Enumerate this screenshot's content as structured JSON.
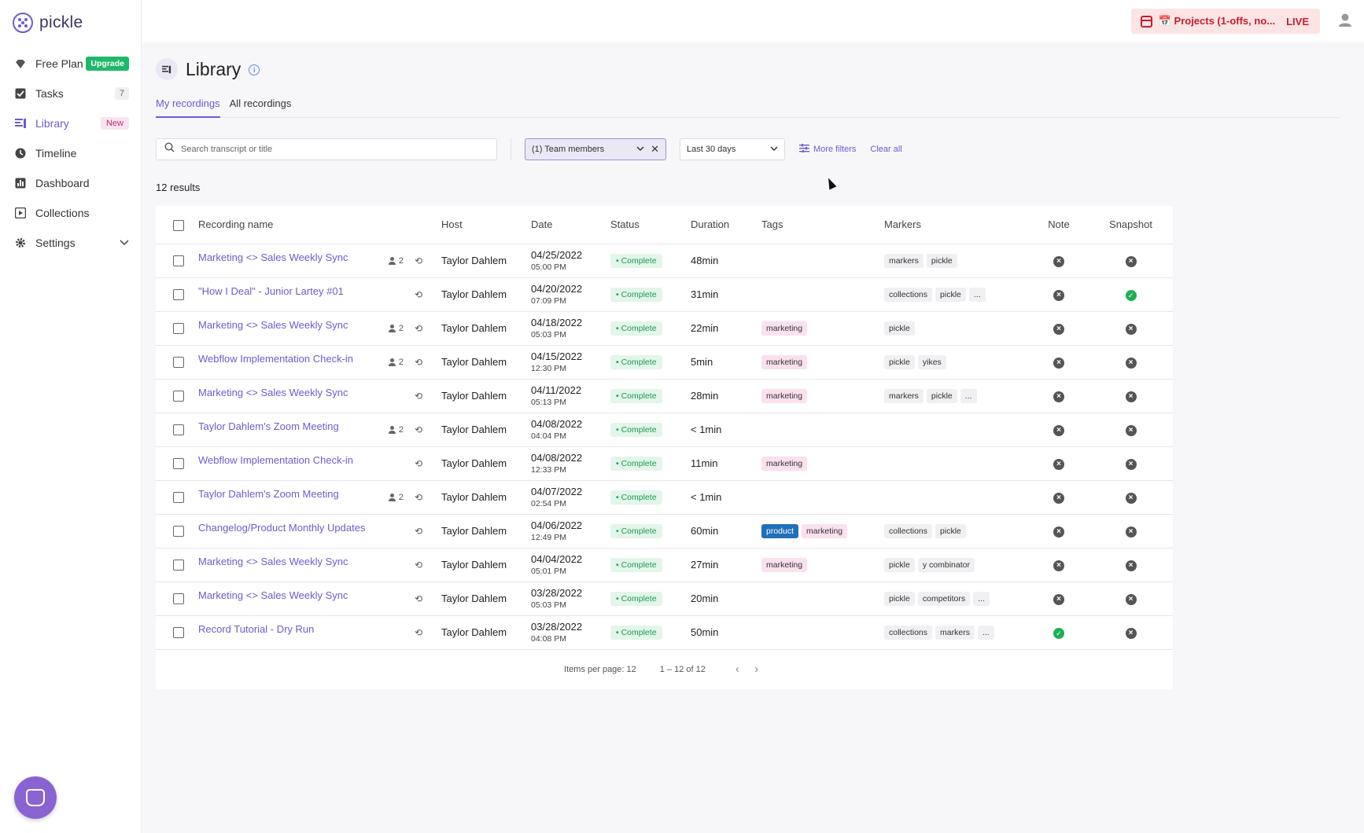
{
  "app": {
    "name": "pickle"
  },
  "sidebar": {
    "plan": {
      "label": "Free Plan",
      "upgrade_label": "Upgrade"
    },
    "items": [
      {
        "label": "Tasks",
        "count": "7"
      },
      {
        "label": "Library",
        "badge": "New"
      },
      {
        "label": "Timeline"
      },
      {
        "label": "Dashboard"
      },
      {
        "label": "Collections"
      },
      {
        "label": "Settings"
      }
    ]
  },
  "topbar": {
    "live_text": "📅 Projects (1-offs, no...",
    "live_badge": "LIVE"
  },
  "page": {
    "title": "Library",
    "tabs": [
      "My recordings",
      "All recordings"
    ]
  },
  "filters": {
    "search_placeholder": "Search transcript or title",
    "team_members": "(1) Team members",
    "date_range": "Last 30 days",
    "more_filters": "More filters",
    "clear_all": "Clear all"
  },
  "results_label": "12 results",
  "table": {
    "headers": [
      "Recording name",
      "Host",
      "Date",
      "Status",
      "Duration",
      "Tags",
      "Markers",
      "Note",
      "Snapshot"
    ],
    "rows": [
      {
        "name": "Marketing <> Sales Weekly Sync",
        "people": "2",
        "host": "Taylor Dahlem",
        "date": "04/25/2022",
        "time": "05:00 PM",
        "status": "Complete",
        "duration": "48min",
        "tags": [],
        "markers": [
          "markers",
          "pickle"
        ],
        "note": false,
        "snapshot": false
      },
      {
        "name": "\"How I Deal\" - Junior Lartey #01",
        "people": "",
        "host": "Taylor Dahlem",
        "date": "04/20/2022",
        "time": "07:09 PM",
        "status": "Complete",
        "duration": "31min",
        "tags": [],
        "markers": [
          "collections",
          "pickle",
          "..."
        ],
        "note": false,
        "snapshot": true
      },
      {
        "name": "Marketing <> Sales Weekly Sync",
        "people": "2",
        "host": "Taylor Dahlem",
        "date": "04/18/2022",
        "time": "05:03 PM",
        "status": "Complete",
        "duration": "22min",
        "tags": [
          "marketing"
        ],
        "markers": [
          "pickle"
        ],
        "note": false,
        "snapshot": false
      },
      {
        "name": "Webflow Implementation Check-in",
        "people": "2",
        "host": "Taylor Dahlem",
        "date": "04/15/2022",
        "time": "12:30 PM",
        "status": "Complete",
        "duration": "5min",
        "tags": [
          "marketing"
        ],
        "markers": [
          "pickle",
          "yikes"
        ],
        "note": false,
        "snapshot": false
      },
      {
        "name": "Marketing <> Sales Weekly Sync",
        "people": "",
        "host": "Taylor Dahlem",
        "date": "04/11/2022",
        "time": "05:13 PM",
        "status": "Complete",
        "duration": "28min",
        "tags": [
          "marketing"
        ],
        "markers": [
          "markers",
          "pickle",
          "..."
        ],
        "note": false,
        "snapshot": false
      },
      {
        "name": "Taylor Dahlem's Zoom Meeting",
        "people": "2",
        "host": "Taylor Dahlem",
        "date": "04/08/2022",
        "time": "04:04 PM",
        "status": "Complete",
        "duration": "< 1min",
        "tags": [],
        "markers": [],
        "note": false,
        "snapshot": false
      },
      {
        "name": "Webflow Implementation Check-in",
        "people": "",
        "host": "Taylor Dahlem",
        "date": "04/08/2022",
        "time": "12:33 PM",
        "status": "Complete",
        "duration": "11min",
        "tags": [
          "marketing"
        ],
        "markers": [],
        "note": false,
        "snapshot": false
      },
      {
        "name": "Taylor Dahlem's Zoom Meeting",
        "people": "2",
        "host": "Taylor Dahlem",
        "date": "04/07/2022",
        "time": "02:54 PM",
        "status": "Complete",
        "duration": "< 1min",
        "tags": [],
        "markers": [],
        "note": false,
        "snapshot": false
      },
      {
        "name": "Changelog/Product Monthly Updates",
        "people": "",
        "host": "Taylor Dahlem",
        "date": "04/06/2022",
        "time": "12:49 PM",
        "status": "Complete",
        "duration": "60min",
        "tags": [
          "product",
          "marketing"
        ],
        "markers": [
          "collections",
          "pickle"
        ],
        "note": false,
        "snapshot": false
      },
      {
        "name": "Marketing <> Sales Weekly Sync",
        "people": "",
        "host": "Taylor Dahlem",
        "date": "04/04/2022",
        "time": "05:01 PM",
        "status": "Complete",
        "duration": "27min",
        "tags": [
          "marketing"
        ],
        "markers": [
          "pickle",
          "y combinator"
        ],
        "note": false,
        "snapshot": false
      },
      {
        "name": "Marketing <> Sales Weekly Sync",
        "people": "",
        "host": "Taylor Dahlem",
        "date": "03/28/2022",
        "time": "05:03 PM",
        "status": "Complete",
        "duration": "20min",
        "tags": [],
        "markers": [
          "pickle",
          "competitors",
          "..."
        ],
        "note": false,
        "snapshot": false
      },
      {
        "name": "Record Tutorial - Dry Run",
        "people": "",
        "host": "Taylor Dahlem",
        "date": "03/28/2022",
        "time": "04:08 PM",
        "status": "Complete",
        "duration": "50min",
        "tags": [],
        "markers": [
          "collections",
          "markers",
          "..."
        ],
        "note": true,
        "snapshot": false
      }
    ]
  },
  "pagination": {
    "items_per_page": "Items per page: 12",
    "range": "1 – 12 of 12"
  }
}
